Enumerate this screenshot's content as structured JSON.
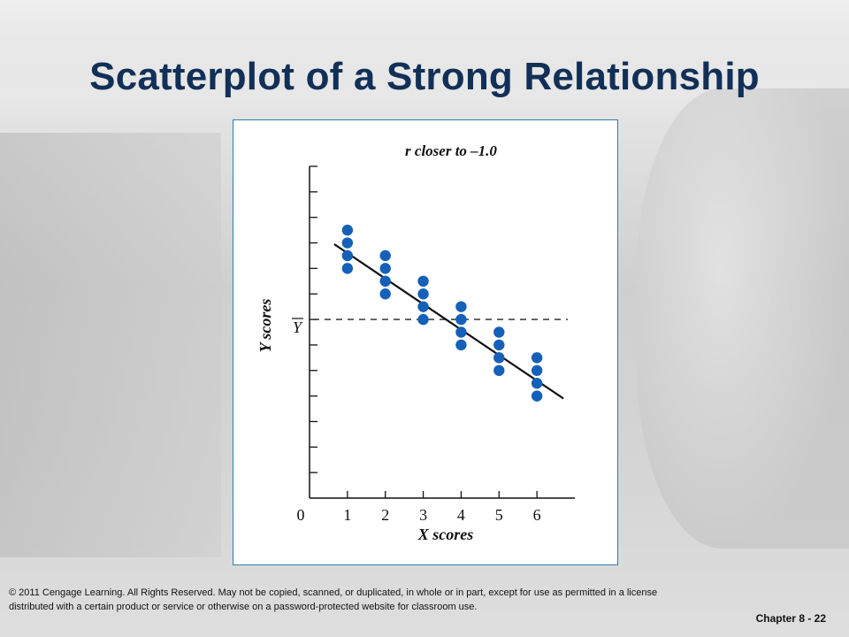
{
  "slide": {
    "title": "Scatterplot of a Strong Relationship",
    "copyright_line1": "© 2011 Cengage Learning. All Rights Reserved. May not be copied, scanned, or duplicated, in whole or in part, except for use as permitted in a license",
    "copyright_line2": "distributed with a certain product or service or otherwise on a password-protected website for classroom use.",
    "chapter_label": "Chapter 8 - 22"
  },
  "colors": {
    "title": "#123057",
    "point": "#1560b8",
    "panel_border": "#2f7ea8"
  },
  "chart_data": {
    "type": "scatter",
    "title": "r closer to –1.0",
    "xlabel": "X scores",
    "ylabel": "Y scores",
    "mean_line_label": "Y",
    "origin_label": "0",
    "x_ticks": [
      "1",
      "2",
      "3",
      "4",
      "5",
      "6"
    ],
    "xlim": [
      0,
      7
    ],
    "ylim": [
      0,
      13
    ],
    "y_mean": 7,
    "regression_line": {
      "x": [
        0.65,
        6.7
      ],
      "y": [
        9.95,
        3.9
      ]
    },
    "points": [
      {
        "x": 1,
        "y": 10.5
      },
      {
        "x": 1,
        "y": 10
      },
      {
        "x": 1,
        "y": 9.5
      },
      {
        "x": 1,
        "y": 9
      },
      {
        "x": 2,
        "y": 9.5
      },
      {
        "x": 2,
        "y": 9
      },
      {
        "x": 2,
        "y": 8.5
      },
      {
        "x": 2,
        "y": 8
      },
      {
        "x": 3,
        "y": 8.5
      },
      {
        "x": 3,
        "y": 8
      },
      {
        "x": 3,
        "y": 7.5
      },
      {
        "x": 3,
        "y": 7
      },
      {
        "x": 4,
        "y": 7.5
      },
      {
        "x": 4,
        "y": 7
      },
      {
        "x": 4,
        "y": 6.5
      },
      {
        "x": 4,
        "y": 6
      },
      {
        "x": 5,
        "y": 6.5
      },
      {
        "x": 5,
        "y": 6
      },
      {
        "x": 5,
        "y": 5.5
      },
      {
        "x": 5,
        "y": 5
      },
      {
        "x": 6,
        "y": 5.5
      },
      {
        "x": 6,
        "y": 5
      },
      {
        "x": 6,
        "y": 4.5
      },
      {
        "x": 6,
        "y": 4
      }
    ],
    "grid": false,
    "legend": "none"
  }
}
